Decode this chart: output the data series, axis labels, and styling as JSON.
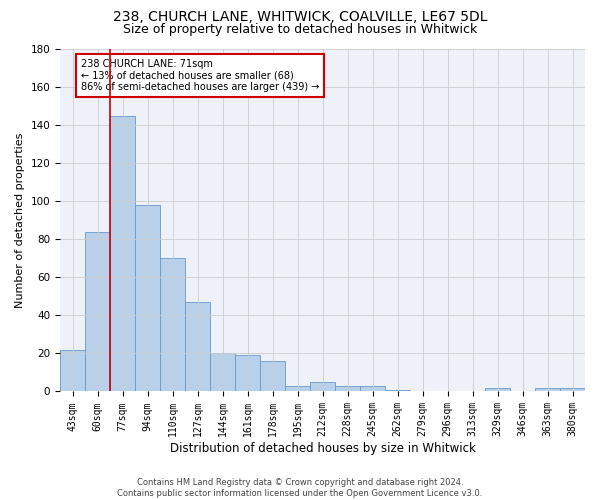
{
  "title1": "238, CHURCH LANE, WHITWICK, COALVILLE, LE67 5DL",
  "title2": "Size of property relative to detached houses in Whitwick",
  "xlabel": "Distribution of detached houses by size in Whitwick",
  "ylabel": "Number of detached properties",
  "footnote1": "Contains HM Land Registry data © Crown copyright and database right 2024.",
  "footnote2": "Contains public sector information licensed under the Open Government Licence v3.0.",
  "bar_labels": [
    "43sqm",
    "60sqm",
    "77sqm",
    "94sqm",
    "110sqm",
    "127sqm",
    "144sqm",
    "161sqm",
    "178sqm",
    "195sqm",
    "212sqm",
    "228sqm",
    "245sqm",
    "262sqm",
    "279sqm",
    "296sqm",
    "313sqm",
    "329sqm",
    "346sqm",
    "363sqm",
    "380sqm"
  ],
  "bar_values": [
    22,
    84,
    145,
    98,
    70,
    47,
    20,
    19,
    16,
    3,
    5,
    3,
    3,
    1,
    0,
    0,
    0,
    2,
    0,
    2,
    2
  ],
  "bar_color": "#b8d0ea",
  "bar_edge_color": "#6699cc",
  "annotation_text": "238 CHURCH LANE: 71sqm\n← 13% of detached houses are smaller (68)\n86% of semi-detached houses are larger (439) →",
  "box_color": "#ffffff",
  "box_edge_color": "#cc0000",
  "line_color": "#cc0000",
  "ylim": [
    0,
    180
  ],
  "yticks": [
    0,
    20,
    40,
    60,
    80,
    100,
    120,
    140,
    160,
    180
  ],
  "grid_color": "#cccccc",
  "bg_color": "#eef2f8",
  "title_fontsize": 10,
  "subtitle_fontsize": 9,
  "tick_fontsize": 7,
  "ylabel_fontsize": 8,
  "xlabel_fontsize": 8.5,
  "footnote_fontsize": 6
}
